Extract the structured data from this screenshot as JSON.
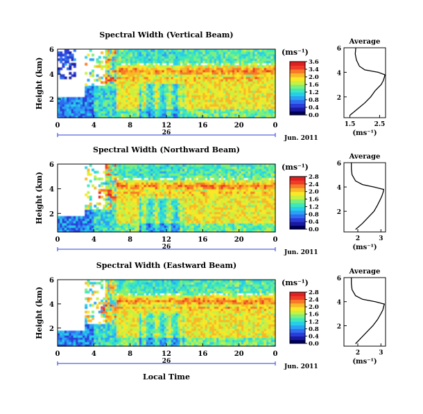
{
  "chart_data": {
    "type": "heatmap",
    "xlabel": "Local Time",
    "date_label": "Jun. 2011",
    "day_label": "26",
    "x_ticks": [
      "0",
      "4",
      "8",
      "12",
      "16",
      "20",
      "0"
    ],
    "xlim_hours": [
      0,
      24
    ],
    "ylabel": "Height (km)",
    "y_ticks": [
      "2",
      "4",
      "6"
    ],
    "ylim_km": [
      0.5,
      6
    ],
    "colorbar": {
      "unit": "(ms⁻¹)",
      "colors": [
        "#00005a",
        "#1a1aa0",
        "#2a3cd8",
        "#2f6cf0",
        "#2aa2f4",
        "#26cfe8",
        "#3ee8b8",
        "#7cf07a",
        "#c8f040",
        "#f8e828",
        "#f8b828",
        "#f87a28",
        "#ee3c28",
        "#e02020"
      ]
    },
    "panels": [
      {
        "title": "Spectral Width (Vertical Beam)",
        "colorbar_ticks": [
          "3.6",
          "3.4",
          "2.0",
          "1.6",
          "1.2",
          "0.8",
          "0.4",
          "0.0"
        ],
        "profile": {
          "title": "Average",
          "xlabel": "(ms⁻¹)",
          "x_ticks": [
            "1.5",
            "2.5"
          ],
          "xlim": [
            1.3,
            2.7
          ],
          "heights_km": [
            0.5,
            1.0,
            1.5,
            2.0,
            2.5,
            3.0,
            3.3,
            3.6,
            3.8,
            4.0,
            4.2,
            4.5,
            5.0,
            5.5,
            6.0
          ],
          "values": [
            1.5,
            1.75,
            2.0,
            2.2,
            2.35,
            2.55,
            2.62,
            2.66,
            2.68,
            2.45,
            2.0,
            1.82,
            1.72,
            1.68,
            1.7
          ]
        }
      },
      {
        "title": "Spectral Width (Northward Beam)",
        "colorbar_ticks": [
          "2.8",
          "2.4",
          "2.0",
          "1.6",
          "1.2",
          "0.8",
          "0.4",
          "0.0"
        ],
        "profile": {
          "title": "Average",
          "xlabel": "(ms⁻¹)",
          "x_ticks": [
            "2",
            "3"
          ],
          "xlim": [
            1.4,
            3.2
          ],
          "heights_km": [
            0.5,
            1.0,
            1.5,
            2.0,
            2.5,
            3.0,
            3.3,
            3.6,
            3.8,
            4.0,
            4.2,
            4.5,
            5.0,
            5.5,
            6.0
          ],
          "values": [
            1.9,
            2.2,
            2.45,
            2.7,
            2.85,
            2.98,
            3.05,
            3.1,
            3.12,
            2.7,
            2.2,
            1.9,
            1.75,
            1.72,
            1.72
          ]
        }
      },
      {
        "title": "Spectral Width (Eastward Beam)",
        "colorbar_ticks": [
          "2.8",
          "2.4",
          "2.0",
          "1.6",
          "1.2",
          "0.8",
          "0.4",
          "0.0"
        ],
        "profile": {
          "title": "Average",
          "xlabel": "(ms⁻¹)",
          "x_ticks": [
            "2",
            "3"
          ],
          "xlim": [
            1.4,
            3.2
          ],
          "heights_km": [
            0.5,
            1.0,
            1.5,
            2.0,
            2.5,
            3.0,
            3.3,
            3.6,
            3.8,
            4.0,
            4.2,
            4.5,
            5.0,
            5.5,
            6.0
          ],
          "values": [
            1.9,
            2.15,
            2.4,
            2.65,
            2.85,
            3.0,
            3.08,
            3.12,
            3.15,
            2.75,
            2.2,
            1.9,
            1.75,
            1.72,
            1.72
          ]
        }
      }
    ]
  }
}
